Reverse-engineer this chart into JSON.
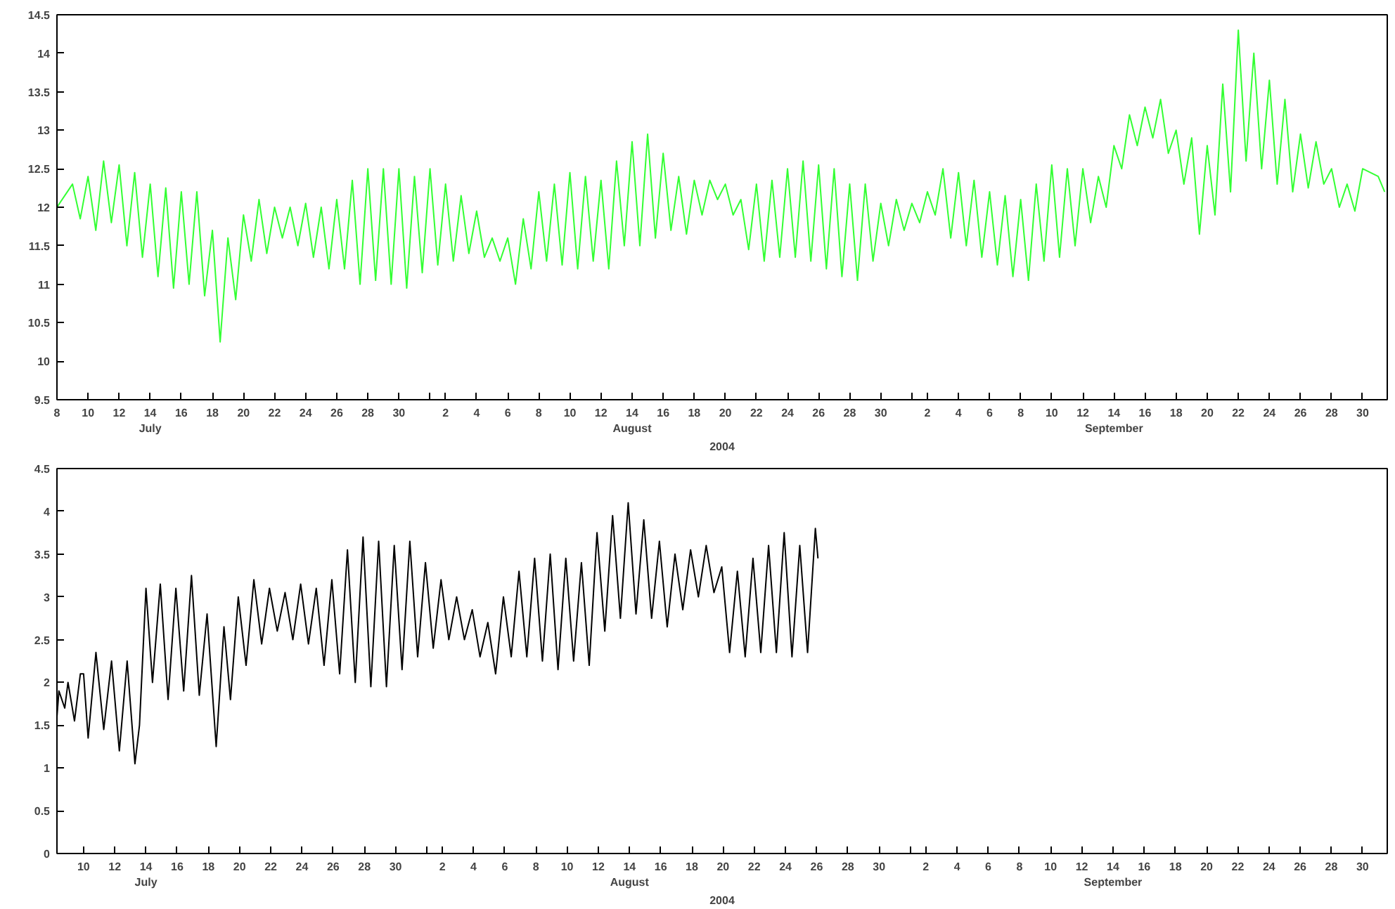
{
  "chart_data": [
    {
      "type": "line",
      "xlabel": "2004",
      "xlim": [
        "2004-07-08",
        "2004-10-01T14:00"
      ],
      "ylim": [
        9.5,
        14.5
      ],
      "yticks": [
        9.5,
        10,
        10.5,
        11,
        11.5,
        12,
        12.5,
        13,
        13.5,
        14,
        14.5
      ],
      "grid": false,
      "line_style": "solid",
      "xticks": [
        {
          "value": "2004-07-08",
          "label": "8"
        },
        {
          "value": "2004-07-10",
          "label": "10"
        },
        {
          "value": "2004-07-12",
          "label": "12"
        },
        {
          "value": "2004-07-14",
          "label": "14\nJuly"
        },
        {
          "value": "2004-07-16",
          "label": "16"
        },
        {
          "value": "2004-07-18",
          "label": "18"
        },
        {
          "value": "2004-07-20",
          "label": "20"
        },
        {
          "value": "2004-07-22",
          "label": "22"
        },
        {
          "value": "2004-07-24",
          "label": "24"
        },
        {
          "value": "2004-07-26",
          "label": "26"
        },
        {
          "value": "2004-07-28",
          "label": "28"
        },
        {
          "value": "2004-07-30",
          "label": "30"
        },
        {
          "value": "2004-08-01",
          "label": null
        },
        {
          "value": "2004-08-02",
          "label": "2"
        },
        {
          "value": "2004-08-04",
          "label": "4"
        },
        {
          "value": "2004-08-06",
          "label": "6"
        },
        {
          "value": "2004-08-08",
          "label": "8"
        },
        {
          "value": "2004-08-10",
          "label": "10"
        },
        {
          "value": "2004-08-12",
          "label": "12"
        },
        {
          "value": "2004-08-14",
          "label": "14\nAugust"
        },
        {
          "value": "2004-08-16",
          "label": "16"
        },
        {
          "value": "2004-08-18",
          "label": "18"
        },
        {
          "value": "2004-08-20",
          "label": "20"
        },
        {
          "value": "2004-08-22",
          "label": "22"
        },
        {
          "value": "2004-08-24",
          "label": "24"
        },
        {
          "value": "2004-08-26",
          "label": "26"
        },
        {
          "value": "2004-08-28",
          "label": "28"
        },
        {
          "value": "2004-08-30",
          "label": "30"
        },
        {
          "value": "2004-09-01",
          "label": null
        },
        {
          "value": "2004-09-02",
          "label": "2"
        },
        {
          "value": "2004-09-04",
          "label": "4"
        },
        {
          "value": "2004-09-06",
          "label": "6"
        },
        {
          "value": "2004-09-08",
          "label": "8"
        },
        {
          "value": "2004-09-10",
          "label": "10"
        },
        {
          "value": "2004-09-12",
          "label": "12"
        },
        {
          "value": "2004-09-14",
          "label": "14\nSeptember"
        },
        {
          "value": "2004-09-16",
          "label": "16"
        },
        {
          "value": "2004-09-18",
          "label": "18"
        },
        {
          "value": "2004-09-20",
          "label": "20"
        },
        {
          "value": "2004-09-22",
          "label": "22"
        },
        {
          "value": "2004-09-24",
          "label": "24"
        },
        {
          "value": "2004-09-26",
          "label": "26"
        },
        {
          "value": "2004-09-28",
          "label": "28"
        },
        {
          "value": "2004-09-30",
          "label": "30"
        }
      ],
      "series": [
        {
          "color": "#33ff33",
          "x": [
            "2004-07-08",
            "2004-07-09",
            "2004-07-09T12:00",
            "2004-07-10",
            "2004-07-10T12:00",
            "2004-07-11",
            "2004-07-11T12:00",
            "2004-07-12",
            "2004-07-12T12:00",
            "2004-07-13",
            "2004-07-13T12:00",
            "2004-07-14",
            "2004-07-14T12:00",
            "2004-07-15",
            "2004-07-15T12:00",
            "2004-07-16",
            "2004-07-16T12:00",
            "2004-07-17",
            "2004-07-17T12:00",
            "2004-07-18",
            "2004-07-18T12:00",
            "2004-07-19",
            "2004-07-19T12:00",
            "2004-07-20",
            "2004-07-20T12:00",
            "2004-07-21",
            "2004-07-21T12:00",
            "2004-07-22",
            "2004-07-22T12:00",
            "2004-07-23",
            "2004-07-23T12:00",
            "2004-07-24",
            "2004-07-24T12:00",
            "2004-07-25",
            "2004-07-25T12:00",
            "2004-07-26",
            "2004-07-26T12:00",
            "2004-07-27",
            "2004-07-27T12:00",
            "2004-07-28",
            "2004-07-28T12:00",
            "2004-07-29",
            "2004-07-29T12:00",
            "2004-07-30",
            "2004-07-30T12:00",
            "2004-07-31",
            "2004-07-31T12:00",
            "2004-08-01",
            "2004-08-01T12:00",
            "2004-08-02",
            "2004-08-02T12:00",
            "2004-08-03",
            "2004-08-03T12:00",
            "2004-08-04",
            "2004-08-04T12:00",
            "2004-08-05",
            "2004-08-05T12:00",
            "2004-08-06",
            "2004-08-06T12:00",
            "2004-08-07",
            "2004-08-07T12:00",
            "2004-08-08",
            "2004-08-08T12:00",
            "2004-08-09",
            "2004-08-09T12:00",
            "2004-08-10",
            "2004-08-10T12:00",
            "2004-08-11",
            "2004-08-11T12:00",
            "2004-08-12",
            "2004-08-12T12:00",
            "2004-08-13",
            "2004-08-13T12:00",
            "2004-08-14",
            "2004-08-14T12:00",
            "2004-08-15",
            "2004-08-15T12:00",
            "2004-08-16",
            "2004-08-16T12:00",
            "2004-08-17",
            "2004-08-17T12:00",
            "2004-08-18",
            "2004-08-18T12:00",
            "2004-08-19",
            "2004-08-19T12:00",
            "2004-08-20",
            "2004-08-20T12:00",
            "2004-08-21",
            "2004-08-21T12:00",
            "2004-08-22",
            "2004-08-22T12:00",
            "2004-08-23",
            "2004-08-23T12:00",
            "2004-08-24",
            "2004-08-24T12:00",
            "2004-08-25",
            "2004-08-25T12:00",
            "2004-08-26",
            "2004-08-26T12:00",
            "2004-08-27",
            "2004-08-27T12:00",
            "2004-08-28",
            "2004-08-28T12:00",
            "2004-08-29",
            "2004-08-29T12:00",
            "2004-08-30",
            "2004-08-30T12:00",
            "2004-08-31",
            "2004-08-31T12:00",
            "2004-09-01",
            "2004-09-01T12:00",
            "2004-09-02",
            "2004-09-02T12:00",
            "2004-09-03",
            "2004-09-03T12:00",
            "2004-09-04",
            "2004-09-04T12:00",
            "2004-09-05",
            "2004-09-05T12:00",
            "2004-09-06",
            "2004-09-06T12:00",
            "2004-09-07",
            "2004-09-07T12:00",
            "2004-09-08",
            "2004-09-08T12:00",
            "2004-09-09",
            "2004-09-09T12:00",
            "2004-09-10",
            "2004-09-10T12:00",
            "2004-09-11",
            "2004-09-11T12:00",
            "2004-09-12",
            "2004-09-12T12:00",
            "2004-09-13",
            "2004-09-13T12:00",
            "2004-09-14",
            "2004-09-14T12:00",
            "2004-09-15",
            "2004-09-15T12:00",
            "2004-09-16",
            "2004-09-16T12:00",
            "2004-09-17",
            "2004-09-17T12:00",
            "2004-09-18",
            "2004-09-18T12:00",
            "2004-09-19",
            "2004-09-19T12:00",
            "2004-09-20",
            "2004-09-20T12:00",
            "2004-09-21",
            "2004-09-21T12:00",
            "2004-09-22",
            "2004-09-22T12:00",
            "2004-09-23",
            "2004-09-23T12:00",
            "2004-09-24",
            "2004-09-24T12:00",
            "2004-09-25",
            "2004-09-25T12:00",
            "2004-09-26",
            "2004-09-26T12:00",
            "2004-09-27",
            "2004-09-27T12:00",
            "2004-09-28",
            "2004-09-28T12:00",
            "2004-09-29",
            "2004-09-29T12:00",
            "2004-09-30",
            "2004-10-01",
            "2004-10-01T10:00"
          ],
          "values": [
            12.0,
            12.3,
            11.85,
            12.4,
            11.7,
            12.6,
            11.8,
            12.55,
            11.5,
            12.45,
            11.35,
            12.3,
            11.1,
            12.25,
            10.95,
            12.2,
            11.0,
            12.2,
            10.85,
            11.7,
            10.25,
            11.6,
            10.8,
            11.9,
            11.3,
            12.1,
            11.4,
            12.0,
            11.6,
            12.0,
            11.5,
            12.05,
            11.35,
            12.0,
            11.2,
            12.1,
            11.2,
            12.35,
            11.0,
            12.5,
            11.05,
            12.5,
            11.0,
            12.5,
            10.95,
            12.4,
            11.15,
            12.5,
            11.25,
            12.3,
            11.3,
            12.15,
            11.4,
            11.95,
            11.35,
            11.6,
            11.3,
            11.6,
            11.0,
            11.85,
            11.2,
            12.2,
            11.3,
            12.3,
            11.25,
            12.45,
            11.2,
            12.4,
            11.3,
            12.35,
            11.2,
            12.6,
            11.5,
            12.85,
            11.5,
            12.95,
            11.6,
            12.7,
            11.7,
            12.4,
            11.65,
            12.35,
            11.9,
            12.35,
            12.1,
            12.3,
            11.9,
            12.1,
            11.45,
            12.3,
            11.3,
            12.35,
            11.35,
            12.5,
            11.35,
            12.6,
            11.3,
            12.55,
            11.2,
            12.5,
            11.1,
            12.3,
            11.05,
            12.3,
            11.3,
            12.05,
            11.5,
            12.1,
            11.7,
            12.05,
            11.8,
            12.2,
            11.9,
            12.5,
            11.6,
            12.45,
            11.5,
            12.35,
            11.35,
            12.2,
            11.25,
            12.15,
            11.1,
            12.1,
            11.05,
            12.3,
            11.3,
            12.55,
            11.35,
            12.5,
            11.5,
            12.5,
            11.8,
            12.4,
            12.0,
            12.8,
            12.5,
            13.2,
            12.8,
            13.3,
            12.9,
            13.4,
            12.7,
            13.0,
            12.3,
            12.9,
            11.65,
            12.8,
            11.9,
            13.6,
            12.2,
            14.3,
            12.6,
            14.0,
            12.5,
            13.65,
            12.3,
            13.4,
            12.2,
            12.95,
            12.25,
            12.85,
            12.3,
            12.5,
            12.0,
            12.3,
            11.95,
            12.5,
            12.4,
            12.2
          ]
        }
      ]
    },
    {
      "type": "line",
      "xlabel": "2004",
      "xlim": [
        "2004-07-08T07:00",
        "2004-10-01T14:00"
      ],
      "ylim": [
        0,
        4.5
      ],
      "yticks": [
        0,
        0.5,
        1,
        1.5,
        2,
        2.5,
        3,
        3.5,
        4,
        4.5
      ],
      "grid": false,
      "line_style": "solid",
      "xticks": [
        {
          "value": "2004-07-10",
          "label": "10"
        },
        {
          "value": "2004-07-12",
          "label": "12"
        },
        {
          "value": "2004-07-14",
          "label": "14\nJuly"
        },
        {
          "value": "2004-07-16",
          "label": "16"
        },
        {
          "value": "2004-07-18",
          "label": "18"
        },
        {
          "value": "2004-07-20",
          "label": "20"
        },
        {
          "value": "2004-07-22",
          "label": "22"
        },
        {
          "value": "2004-07-24",
          "label": "24"
        },
        {
          "value": "2004-07-26",
          "label": "26"
        },
        {
          "value": "2004-07-28",
          "label": "28"
        },
        {
          "value": "2004-07-30",
          "label": "30"
        },
        {
          "value": "2004-08-01",
          "label": null
        },
        {
          "value": "2004-08-02",
          "label": "2"
        },
        {
          "value": "2004-08-04",
          "label": "4"
        },
        {
          "value": "2004-08-06",
          "label": "6"
        },
        {
          "value": "2004-08-08",
          "label": "8"
        },
        {
          "value": "2004-08-10",
          "label": "10"
        },
        {
          "value": "2004-08-12",
          "label": "12"
        },
        {
          "value": "2004-08-14",
          "label": "14\nAugust"
        },
        {
          "value": "2004-08-16",
          "label": "16"
        },
        {
          "value": "2004-08-18",
          "label": "18"
        },
        {
          "value": "2004-08-20",
          "label": "20"
        },
        {
          "value": "2004-08-22",
          "label": "22"
        },
        {
          "value": "2004-08-24",
          "label": "24"
        },
        {
          "value": "2004-08-26",
          "label": "26"
        },
        {
          "value": "2004-08-28",
          "label": "28"
        },
        {
          "value": "2004-08-30",
          "label": "30"
        },
        {
          "value": "2004-09-01",
          "label": null
        },
        {
          "value": "2004-09-02",
          "label": "2"
        },
        {
          "value": "2004-09-04",
          "label": "4"
        },
        {
          "value": "2004-09-06",
          "label": "6"
        },
        {
          "value": "2004-09-08",
          "label": "8"
        },
        {
          "value": "2004-09-10",
          "label": "10"
        },
        {
          "value": "2004-09-12",
          "label": "12"
        },
        {
          "value": "2004-09-14",
          "label": "14\nSeptember"
        },
        {
          "value": "2004-09-16",
          "label": "16"
        },
        {
          "value": "2004-09-18",
          "label": "18"
        },
        {
          "value": "2004-09-20",
          "label": "20"
        },
        {
          "value": "2004-09-22",
          "label": "22"
        },
        {
          "value": "2004-09-24",
          "label": "24"
        },
        {
          "value": "2004-09-26",
          "label": "26"
        },
        {
          "value": "2004-09-28",
          "label": "28"
        },
        {
          "value": "2004-09-30",
          "label": "30"
        }
      ],
      "series": [
        {
          "color": "#000000",
          "x": [
            "2004-07-08T07:00",
            "2004-07-08T10:00",
            "2004-07-08T19:00",
            "2004-07-09",
            "2004-07-09T10:00",
            "2004-07-09T19:00",
            "2004-07-10",
            "2004-07-10T07:00",
            "2004-07-10T19:00",
            "2004-07-11T07:00",
            "2004-07-11T19:00",
            "2004-07-12T07:00",
            "2004-07-12T19:00",
            "2004-07-13T07:00",
            "2004-07-13T14:00",
            "2004-07-14",
            "2004-07-14T10:00",
            "2004-07-14T22:00",
            "2004-07-15T10:00",
            "2004-07-15T22:00",
            "2004-07-16T10:00",
            "2004-07-16T22:00",
            "2004-07-17T10:00",
            "2004-07-17T22:00",
            "2004-07-18T12:00",
            "2004-07-19",
            "2004-07-19T10:00",
            "2004-07-19T22:00",
            "2004-07-20T10:00",
            "2004-07-20T22:00",
            "2004-07-21T10:00",
            "2004-07-21T22:00",
            "2004-07-22T10:00",
            "2004-07-22T22:00",
            "2004-07-23T10:00",
            "2004-07-23T22:00",
            "2004-07-24T10:00",
            "2004-07-24T22:00",
            "2004-07-25T10:00",
            "2004-07-25T22:00",
            "2004-07-26T10:00",
            "2004-07-26T22:00",
            "2004-07-27T10:00",
            "2004-07-27T22:00",
            "2004-07-28T10:00",
            "2004-07-28T22:00",
            "2004-07-29T10:00",
            "2004-07-29T22:00",
            "2004-07-30T10:00",
            "2004-07-30T22:00",
            "2004-07-31T10:00",
            "2004-07-31T22:00",
            "2004-08-01T10:00",
            "2004-08-01T22:00",
            "2004-08-02T10:00",
            "2004-08-02T22:00",
            "2004-08-03T10:00",
            "2004-08-03T22:00",
            "2004-08-04T10:00",
            "2004-08-04T22:00",
            "2004-08-05T10:00",
            "2004-08-05T22:00",
            "2004-08-06T10:00",
            "2004-08-06T22:00",
            "2004-08-07T10:00",
            "2004-08-07T22:00",
            "2004-08-08T10:00",
            "2004-08-08T22:00",
            "2004-08-09T10:00",
            "2004-08-09T22:00",
            "2004-08-10T10:00",
            "2004-08-10T22:00",
            "2004-08-11T10:00",
            "2004-08-11T22:00",
            "2004-08-12T10:00",
            "2004-08-12T22:00",
            "2004-08-13T10:00",
            "2004-08-13T22:00",
            "2004-08-14T10:00",
            "2004-08-14T22:00",
            "2004-08-15T10:00",
            "2004-08-15T22:00",
            "2004-08-16T10:00",
            "2004-08-16T22:00",
            "2004-08-17T10:00",
            "2004-08-17T22:00",
            "2004-08-18T10:00",
            "2004-08-18T22:00",
            "2004-08-19T10:00",
            "2004-08-19T22:00",
            "2004-08-20T10:00",
            "2004-08-20T22:00",
            "2004-08-21T10:00",
            "2004-08-21T22:00",
            "2004-08-22T10:00",
            "2004-08-22T22:00",
            "2004-08-23T10:00",
            "2004-08-23T22:00",
            "2004-08-24T10:00",
            "2004-08-24T22:00",
            "2004-08-25T10:00",
            "2004-08-25T22:00",
            "2004-08-26T02:00"
          ],
          "values": [
            1.6,
            1.9,
            1.7,
            2.0,
            1.55,
            2.1,
            2.1,
            1.35,
            2.35,
            1.45,
            2.25,
            1.2,
            2.25,
            1.05,
            1.5,
            3.1,
            2.0,
            3.15,
            1.8,
            3.1,
            1.9,
            3.25,
            1.85,
            2.8,
            1.25,
            2.65,
            1.8,
            3.0,
            2.2,
            3.2,
            2.45,
            3.1,
            2.6,
            3.05,
            2.5,
            3.15,
            2.45,
            3.1,
            2.2,
            3.2,
            2.1,
            3.55,
            2.0,
            3.7,
            1.95,
            3.65,
            1.95,
            3.6,
            2.15,
            3.65,
            2.3,
            3.4,
            2.4,
            3.2,
            2.5,
            3.0,
            2.5,
            2.85,
            2.3,
            2.7,
            2.1,
            3.0,
            2.3,
            3.3,
            2.3,
            3.45,
            2.25,
            3.5,
            2.15,
            3.45,
            2.25,
            3.4,
            2.2,
            3.75,
            2.6,
            3.95,
            2.75,
            4.1,
            2.8,
            3.9,
            2.75,
            3.65,
            2.65,
            3.5,
            2.85,
            3.55,
            3.0,
            3.6,
            3.05,
            3.35,
            2.35,
            3.3,
            2.3,
            3.45,
            2.35,
            3.6,
            2.35,
            3.75,
            2.3,
            3.6,
            2.35,
            3.8,
            3.45
          ]
        }
      ]
    }
  ]
}
